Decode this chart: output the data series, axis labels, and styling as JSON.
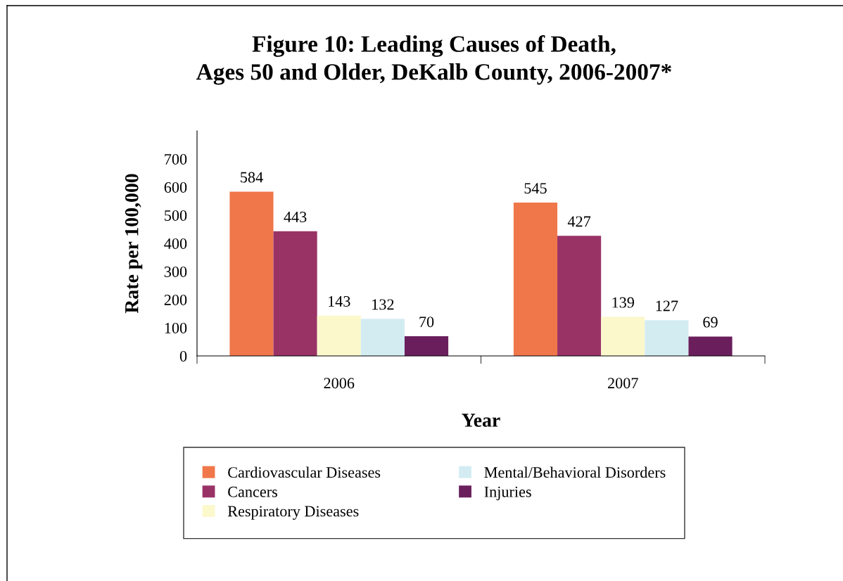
{
  "chart_data": {
    "type": "bar",
    "title": "Figure 10: Leading Causes of Death,\nAges 50 and Older, DeKalb County, 2006-2007*",
    "xlabel": "Year",
    "ylabel": "Rate per 100,000",
    "categories": [
      "2006",
      "2007"
    ],
    "series": [
      {
        "name": "Cardiovascular Diseases",
        "color": "#f0774a",
        "values": [
          584,
          545
        ]
      },
      {
        "name": "Cancers",
        "color": "#993366",
        "values": [
          443,
          427
        ]
      },
      {
        "name": "Respiratory Diseases",
        "color": "#fbf8cc",
        "values": [
          143,
          139
        ]
      },
      {
        "name": "Mental/Behavioral Disorders",
        "color": "#d3ecf2",
        "values": [
          132,
          127
        ]
      },
      {
        "name": "Injuries",
        "color": "#6a1f5c",
        "values": [
          70,
          69
        ]
      }
    ],
    "ylim": [
      0,
      800
    ],
    "yticks": [
      0,
      100,
      200,
      300,
      400,
      500,
      600,
      700
    ],
    "data_labels": true,
    "grid": false,
    "legend": "bottom"
  }
}
